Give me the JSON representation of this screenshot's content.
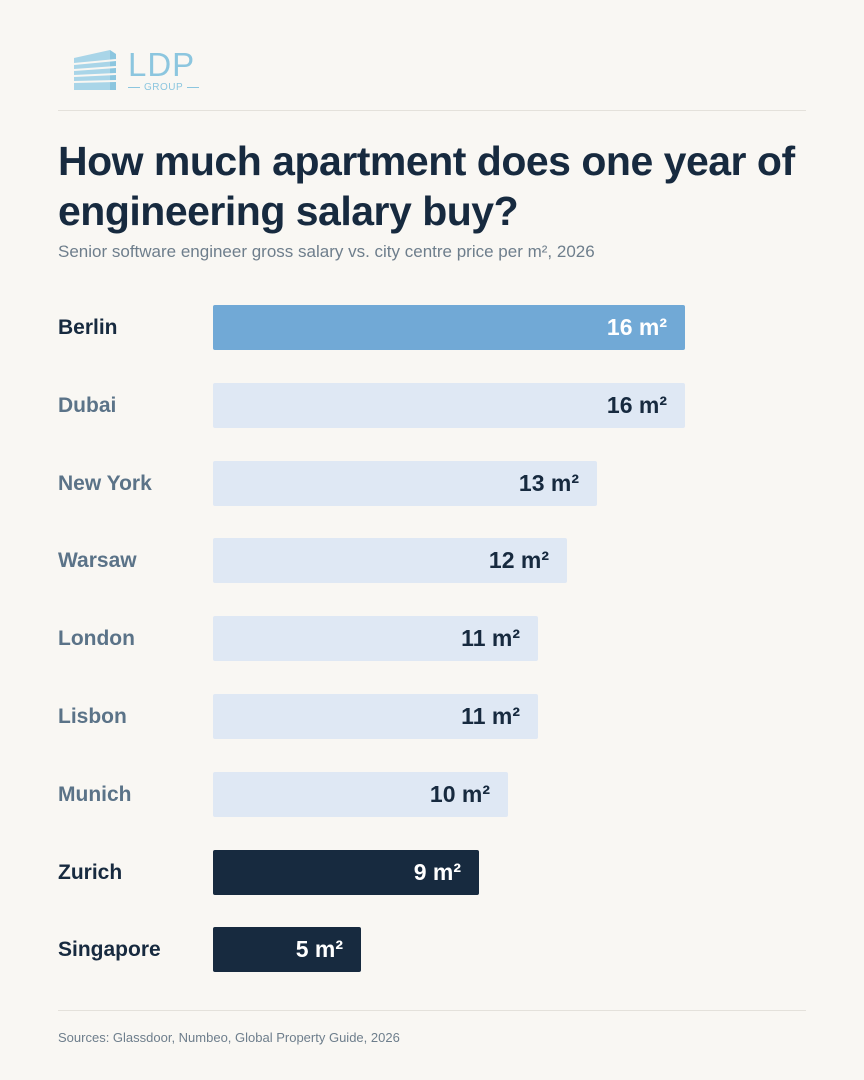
{
  "brand": {
    "name": "LDP",
    "tagline": "GROUP",
    "icon": "building-logo-icon",
    "color": "#8cc6df"
  },
  "header": {
    "title": "How much apartment does one year of engineering salary buy?",
    "subtitle": "Senior software engineer gross salary vs. city centre price per m², 2026"
  },
  "colors": {
    "highlight": "#71a9d6",
    "default": "#dfe8f4",
    "dark": "#172a3f",
    "label_default": "#5b7388"
  },
  "chart_data": {
    "type": "bar",
    "orientation": "horizontal",
    "unit": "m²",
    "categories": [
      "Berlin",
      "Dubai",
      "New York",
      "Warsaw",
      "London",
      "Lisbon",
      "Munich",
      "Zurich",
      "Singapore"
    ],
    "values": [
      16,
      16,
      13,
      12,
      11,
      11,
      10,
      9,
      5
    ],
    "value_labels": [
      "16 m²",
      "16 m²",
      "13 m²",
      "12 m²",
      "11 m²",
      "11 m²",
      "10 m²",
      "9 m²",
      "5 m²"
    ],
    "styles": [
      "highlight",
      "default",
      "default",
      "default",
      "default",
      "default",
      "default",
      "dark",
      "dark"
    ],
    "title": "How much apartment does one year of engineering salary buy?",
    "xlim": [
      0,
      16
    ],
    "grid": false,
    "legend": "none"
  },
  "footer": {
    "sources": "Sources: Glassdoor, Numbeo, Global Property Guide, 2026"
  }
}
